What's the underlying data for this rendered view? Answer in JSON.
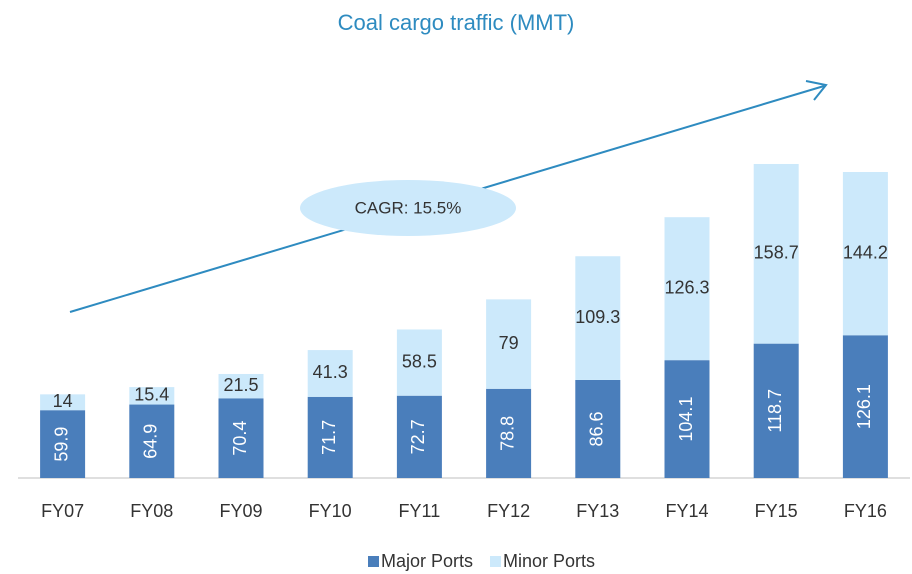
{
  "chart_data": {
    "type": "stacked_bar",
    "title": "Coal cargo traffic (MMT)",
    "annotation": "CAGR: 15.5%",
    "categories": [
      "FY07",
      "FY08",
      "FY09",
      "FY10",
      "FY11",
      "FY12",
      "FY13",
      "FY14",
      "FY15",
      "FY16"
    ],
    "series": [
      {
        "name": "Major Ports",
        "color": "#4a7ebb",
        "values": [
          59.9,
          64.9,
          70.4,
          71.7,
          72.7,
          78.8,
          86.6,
          104.1,
          118.7,
          126.1
        ]
      },
      {
        "name": "Minor Ports",
        "color": "#cce9fb",
        "values": [
          14,
          15.4,
          21.5,
          41.3,
          58.5,
          79,
          109.3,
          126.3,
          158.7,
          144.2
        ]
      }
    ],
    "ylim": [
      0,
      300
    ],
    "legend": "bottom"
  }
}
